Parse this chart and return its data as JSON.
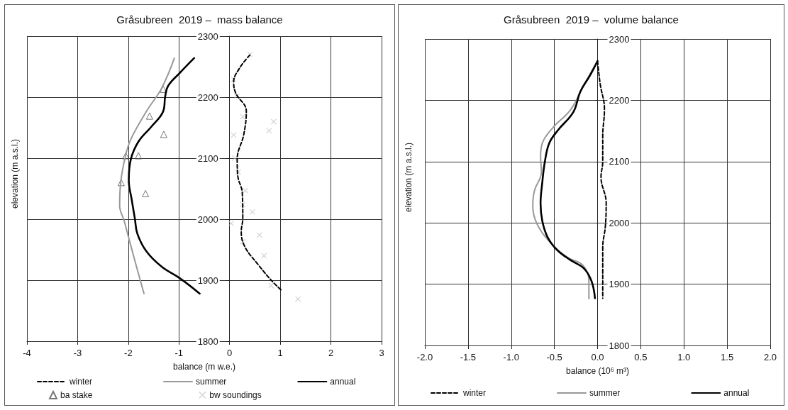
{
  "chart_data": [
    {
      "type": "line",
      "title": "Gråsubreen  2019 –  mass balance",
      "xlabel": "balance (m w.e.)",
      "ylabel": "elevation (m a.s.l.)",
      "xlim": [
        -4,
        3
      ],
      "xticks": [
        -4,
        -3,
        -2,
        -1,
        0,
        1,
        2,
        3
      ],
      "ylim": [
        1800,
        2300
      ],
      "yticks": [
        1800,
        1900,
        2000,
        2100,
        2200,
        2300
      ],
      "grid": true,
      "legend": "bottom",
      "series": [
        {
          "name": "winter",
          "color": "#000000",
          "line_style": "dashed",
          "x": [
            0.4,
            0.2,
            0.08,
            0.12,
            0.33,
            0.28,
            0.15,
            0.16,
            0.25,
            0.26,
            0.23,
            0.3,
            0.56,
            0.81,
            1.04
          ],
          "values": [
            2269,
            2248,
            2225,
            2207,
            2177,
            2139,
            2098,
            2072,
            2043,
            2001,
            1980,
            1955,
            1926,
            1901,
            1882
          ]
        },
        {
          "name": "summer",
          "color": "#999999",
          "x": [
            -1.09,
            -1.34,
            -1.64,
            -1.95,
            -2.06,
            -2.15,
            -2.17,
            -2.08,
            -2.0,
            -1.85,
            -1.69
          ],
          "values": [
            2264,
            2215,
            2177,
            2131,
            2102,
            2060,
            2022,
            1997,
            1972,
            1926,
            1878
          ]
        },
        {
          "name": "annual",
          "color": "#000000",
          "x": [
            -0.7,
            -0.98,
            -1.21,
            -1.27,
            -1.31,
            -1.54,
            -1.8,
            -1.95,
            -1.99,
            -1.93,
            -1.87,
            -1.82,
            -1.64,
            -1.34,
            -0.98,
            -0.59
          ],
          "values": [
            2264,
            2240,
            2219,
            2202,
            2177,
            2152,
            2127,
            2098,
            2064,
            2031,
            2001,
            1976,
            1947,
            1922,
            1903,
            1878
          ]
        },
        {
          "name": "ba stake",
          "type": "scatter",
          "marker": "triangle",
          "color": "#555555",
          "x": [
            -1.31,
            -1.58,
            -1.3,
            -2.05,
            -1.8,
            -2.14,
            -1.66
          ],
          "values": [
            2213,
            2169,
            2139,
            2104,
            2104,
            2060,
            2042
          ]
        },
        {
          "name": "bw soundings",
          "type": "scatter",
          "marker": "cross",
          "color": "#c8c8c8",
          "x": [
            0.4,
            0.08,
            0.14,
            0.26,
            0.87,
            0.78,
            0.08,
            0.1,
            0.17,
            0.31,
            0.26,
            0.45,
            0.03,
            0.26,
            0.59,
            0.68,
            0.82,
            1.35
          ],
          "values": [
            2270,
            2229,
            2202,
            2168,
            2160,
            2145,
            2138,
            2100,
            2077,
            2047,
            2024,
            2012,
            1993,
            1963,
            1974,
            1940,
            1891,
            1869
          ]
        }
      ]
    },
    {
      "type": "line",
      "title": "Gråsubreen  2019 –  volume balance",
      "xlabel": "balance (10⁶ m³)",
      "ylabel": "elevation (m a.s.l.)",
      "xlim": [
        -2,
        2
      ],
      "xticks": [
        {
          "value": -2,
          "label": "-2.0"
        },
        {
          "value": -1.5,
          "label": "-1.5"
        },
        {
          "value": -1,
          "label": "-1.0"
        },
        {
          "value": -0.5,
          "label": "-0.5"
        },
        {
          "value": 0,
          "label": "0.0"
        },
        0.5,
        {
          "value": 1,
          "label": "1.0"
        },
        1.5,
        {
          "value": 2,
          "label": "2.0"
        }
      ],
      "ylim": [
        1800,
        2300
      ],
      "yticks": [
        1800,
        1900,
        2000,
        2100,
        2200,
        2300
      ],
      "grid": true,
      "legend": "bottom",
      "series": [
        {
          "name": "winter",
          "color": "#000000",
          "line_style": "dashed",
          "x": [
            0,
            0.03,
            0.08,
            0.06,
            0.06,
            0.04,
            0.1,
            0.09,
            0.06,
            0.06,
            0.06
          ],
          "values": [
            2264,
            2227,
            2185,
            2142,
            2100,
            2075,
            2032,
            1994,
            1960,
            1918,
            1877
          ]
        },
        {
          "name": "summer",
          "color": "#999999",
          "x": [
            0,
            -0.15,
            -0.31,
            -0.52,
            -0.64,
            -0.66,
            -0.65,
            -0.73,
            -0.75,
            -0.7,
            -0.52,
            -0.34,
            -0.17,
            -0.1,
            -0.1
          ],
          "values": [
            2264,
            2227,
            2185,
            2155,
            2130,
            2108,
            2083,
            2053,
            2028,
            1998,
            1964,
            1943,
            1931,
            1905,
            1876
          ]
        },
        {
          "name": "annual",
          "color": "#000000",
          "x": [
            0,
            -0.09,
            -0.2,
            -0.28,
            -0.46,
            -0.56,
            -0.61,
            -0.64,
            -0.66,
            -0.64,
            -0.58,
            -0.47,
            -0.31,
            -0.16,
            -0.07,
            -0.03
          ],
          "values": [
            2264,
            2240,
            2214,
            2181,
            2151,
            2130,
            2100,
            2066,
            2032,
            2003,
            1977,
            1956,
            1939,
            1926,
            1905,
            1877
          ]
        }
      ]
    }
  ]
}
